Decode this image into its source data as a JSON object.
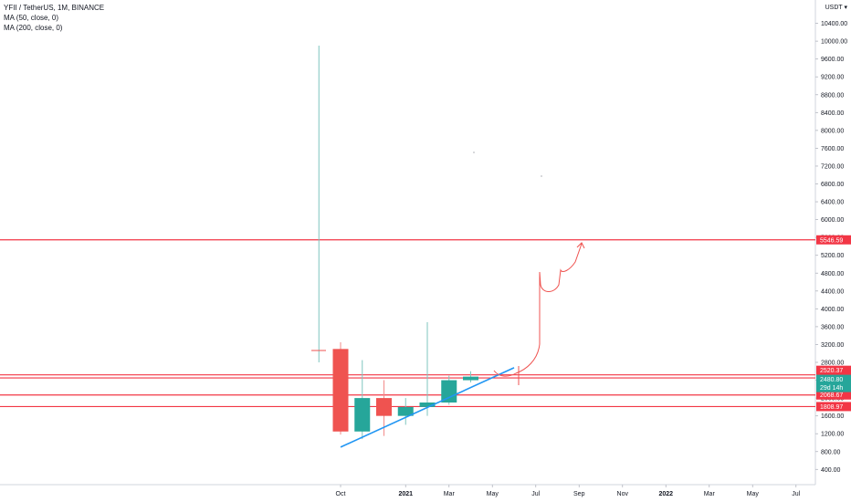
{
  "legend": {
    "symbol_line": "YFII / TetherUS, 1M, BINANCE",
    "ma50": "MA (50, close, 0)",
    "ma200": "MA (200, close, 0)"
  },
  "price_axis": {
    "currency": "USDT"
  },
  "chart_data": {
    "type": "candlestick",
    "title": "YFII / TetherUS, 1M, BINANCE",
    "ylim": [
      200,
      10800
    ],
    "yticks": [
      400,
      800,
      1200,
      1600,
      2000,
      2400,
      2800,
      3200,
      3600,
      4000,
      4400,
      4800,
      5200,
      5600,
      6000,
      6400,
      6800,
      7200,
      7600,
      8000,
      8400,
      8800,
      9200,
      9600,
      10000,
      10400
    ],
    "ytick_labels": [
      "400.00",
      "800.00",
      "1200.00",
      "1600.00",
      "2000.00",
      "2400.00",
      "2800.00",
      "3200.00",
      "3600.00",
      "4000.00",
      "4400.00",
      "4800.00",
      "5200.00",
      "5600.00",
      "6000.00",
      "6400.00",
      "6800.00",
      "7200.00",
      "7600.00",
      "8000.00",
      "8400.00",
      "8800.00",
      "9200.00",
      "9600.00",
      "10000.00",
      "10400.00"
    ],
    "xlabels": [
      {
        "label": "Oct",
        "month": 0
      },
      {
        "label": "2021",
        "month": 3
      },
      {
        "label": "Mar",
        "month": 5
      },
      {
        "label": "May",
        "month": 7
      },
      {
        "label": "Jul",
        "month": 9
      },
      {
        "label": "Sep",
        "month": 11
      },
      {
        "label": "Nov",
        "month": 13
      },
      {
        "label": "2022",
        "month": 15
      },
      {
        "label": "Mar",
        "month": 17
      },
      {
        "label": "May",
        "month": 19
      },
      {
        "label": "Jul",
        "month": 21
      }
    ],
    "candles": [
      {
        "month": -1,
        "open": 3000,
        "high": 9900,
        "low": 2800,
        "close": 3000
      },
      {
        "month": 0,
        "open": 3100,
        "high": 3250,
        "low": 1180,
        "close": 1250
      },
      {
        "month": 1,
        "open": 1250,
        "high": 2850,
        "low": 1080,
        "close": 2000
      },
      {
        "month": 2,
        "open": 2000,
        "high": 2400,
        "low": 1150,
        "close": 1600
      },
      {
        "month": 3,
        "open": 1600,
        "high": 2000,
        "low": 1400,
        "close": 1800
      },
      {
        "month": 4,
        "open": 1800,
        "high": 3700,
        "low": 1600,
        "close": 1900
      },
      {
        "month": 5,
        "open": 1900,
        "high": 2500,
        "low": 1850,
        "close": 2400
      },
      {
        "month": 6,
        "open": 2400,
        "high": 2600,
        "low": 2350,
        "close": 2480
      }
    ],
    "horizontal_levels": [
      {
        "value": 5546.59,
        "label": "5546.59"
      },
      {
        "value": 2520.37,
        "label": "2520.37"
      },
      {
        "value": 2450.61,
        "label": "2450.61"
      },
      {
        "value": 2068.67,
        "label": "2068.67"
      },
      {
        "value": 1808.97,
        "label": "1808.97"
      }
    ],
    "current_price": {
      "value": 2480.8,
      "label": "2480.80",
      "countdown": "29d 14h"
    },
    "trendline": {
      "start": {
        "month": 0,
        "value": 900
      },
      "end": {
        "month": 8,
        "value": 2680
      }
    },
    "colors": {
      "up": "#26a69a",
      "down": "#ef5350",
      "level": "#f23645",
      "trend": "#2196f3",
      "countdown": "#26a69a"
    }
  }
}
